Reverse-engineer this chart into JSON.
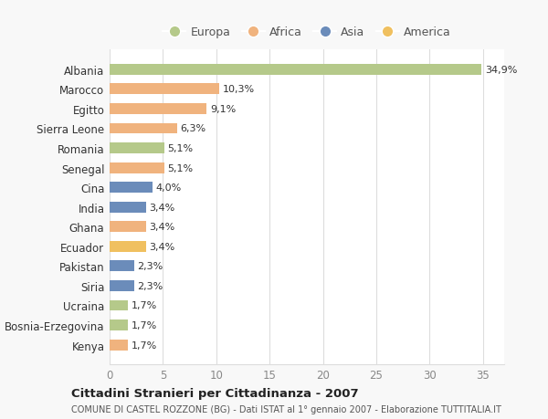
{
  "categories": [
    "Albania",
    "Marocco",
    "Egitto",
    "Sierra Leone",
    "Romania",
    "Senegal",
    "Cina",
    "India",
    "Ghana",
    "Ecuador",
    "Pakistan",
    "Siria",
    "Ucraina",
    "Bosnia-Erzegovina",
    "Kenya"
  ],
  "values": [
    34.9,
    10.3,
    9.1,
    6.3,
    5.1,
    5.1,
    4.0,
    3.4,
    3.4,
    3.4,
    2.3,
    2.3,
    1.7,
    1.7,
    1.7
  ],
  "labels": [
    "34,9%",
    "10,3%",
    "9,1%",
    "6,3%",
    "5,1%",
    "5,1%",
    "4,0%",
    "3,4%",
    "3,4%",
    "3,4%",
    "2,3%",
    "2,3%",
    "1,7%",
    "1,7%",
    "1,7%"
  ],
  "colors": [
    "#b5c98a",
    "#f0b37e",
    "#f0b37e",
    "#f0b37e",
    "#b5c98a",
    "#f0b37e",
    "#6b8cba",
    "#6b8cba",
    "#f0b37e",
    "#f0c060",
    "#6b8cba",
    "#6b8cba",
    "#b5c98a",
    "#b5c98a",
    "#f0b37e"
  ],
  "continent": [
    "Europa",
    "Africa",
    "Africa",
    "Africa",
    "Europa",
    "Africa",
    "Asia",
    "Asia",
    "Africa",
    "America",
    "Asia",
    "Asia",
    "Europa",
    "Europa",
    "Africa"
  ],
  "legend_labels": [
    "Europa",
    "Africa",
    "Asia",
    "America"
  ],
  "legend_colors": [
    "#b5c98a",
    "#f0b37e",
    "#6b8cba",
    "#f0c060"
  ],
  "title": "Cittadini Stranieri per Cittadinanza - 2007",
  "subtitle": "COMUNE DI CASTEL ROZZONE (BG) - Dati ISTAT al 1° gennaio 2007 - Elaborazione TUTTITALIA.IT",
  "xlim": [
    0,
    37
  ],
  "xticks": [
    0,
    5,
    10,
    15,
    20,
    25,
    30,
    35
  ],
  "background_color": "#f8f8f8",
  "plot_bg_color": "#ffffff",
  "grid_color": "#dddddd",
  "label_color": "#333333",
  "tick_color": "#888888"
}
